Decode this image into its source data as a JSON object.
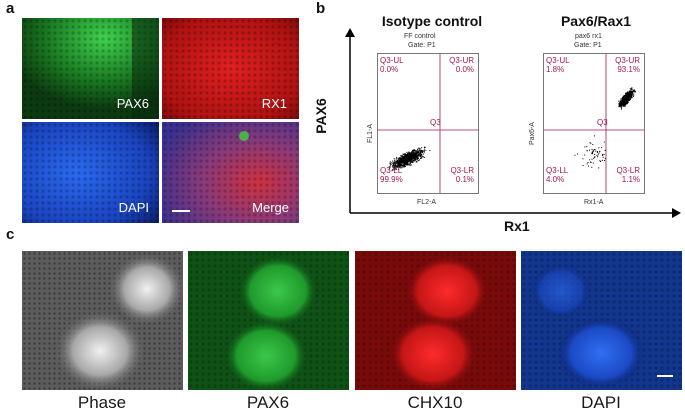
{
  "panel_letters": {
    "a": "a",
    "b": "b",
    "c": "c"
  },
  "panel_a": {
    "labels": {
      "pax6": "PAX6",
      "rx1": "RX1",
      "dapi": "DAPI",
      "merge": "Merge"
    }
  },
  "panel_b": {
    "plots": [
      {
        "title": "Isotype control",
        "header_line1": "FF control",
        "header_line2": "Gate: P1",
        "ylabel": "FL1-A",
        "xlabel": "FL2-A",
        "center_label": "Q3",
        "quadrants": {
          "ul": {
            "name": "Q3-UL",
            "pct": "0.0%"
          },
          "ur": {
            "name": "Q3-UR",
            "pct": "0.0%"
          },
          "ll": {
            "name": "Q3-LL",
            "pct": "99.9%"
          },
          "lr": {
            "name": "Q3-LR",
            "pct": "0.1%"
          }
        },
        "xmin": "10^1.4",
        "xmax": "10^3.9",
        "ymax": "10^4.7"
      },
      {
        "title": "Pax6/Rax1",
        "header_line1": "pax6 rx1",
        "header_line2": "Gate: P1",
        "ylabel": "Pax6-A",
        "xlabel": "Rx1-A",
        "center_label": "Q3",
        "quadrants": {
          "ul": {
            "name": "Q3-UL",
            "pct": "1.8%"
          },
          "ur": {
            "name": "Q3-UR",
            "pct": "93.1%"
          },
          "ll": {
            "name": "Q3-LL",
            "pct": "4.0%"
          },
          "lr": {
            "name": "Q3-LR",
            "pct": "1.1%"
          }
        },
        "xmin": "10^1.4",
        "xmax": "10^3.9",
        "ymax": "10^4.7"
      }
    ],
    "y_axis_title": "PAX6",
    "x_axis_title": "Rx1"
  },
  "panel_c": {
    "labels": [
      "Phase",
      "PAX6",
      "CHX10",
      "DAPI"
    ]
  },
  "colors": {
    "green": "#1f8f2a",
    "red": "#d81a1a",
    "blue": "#1a4fd8",
    "quadrant": "#a01850"
  }
}
